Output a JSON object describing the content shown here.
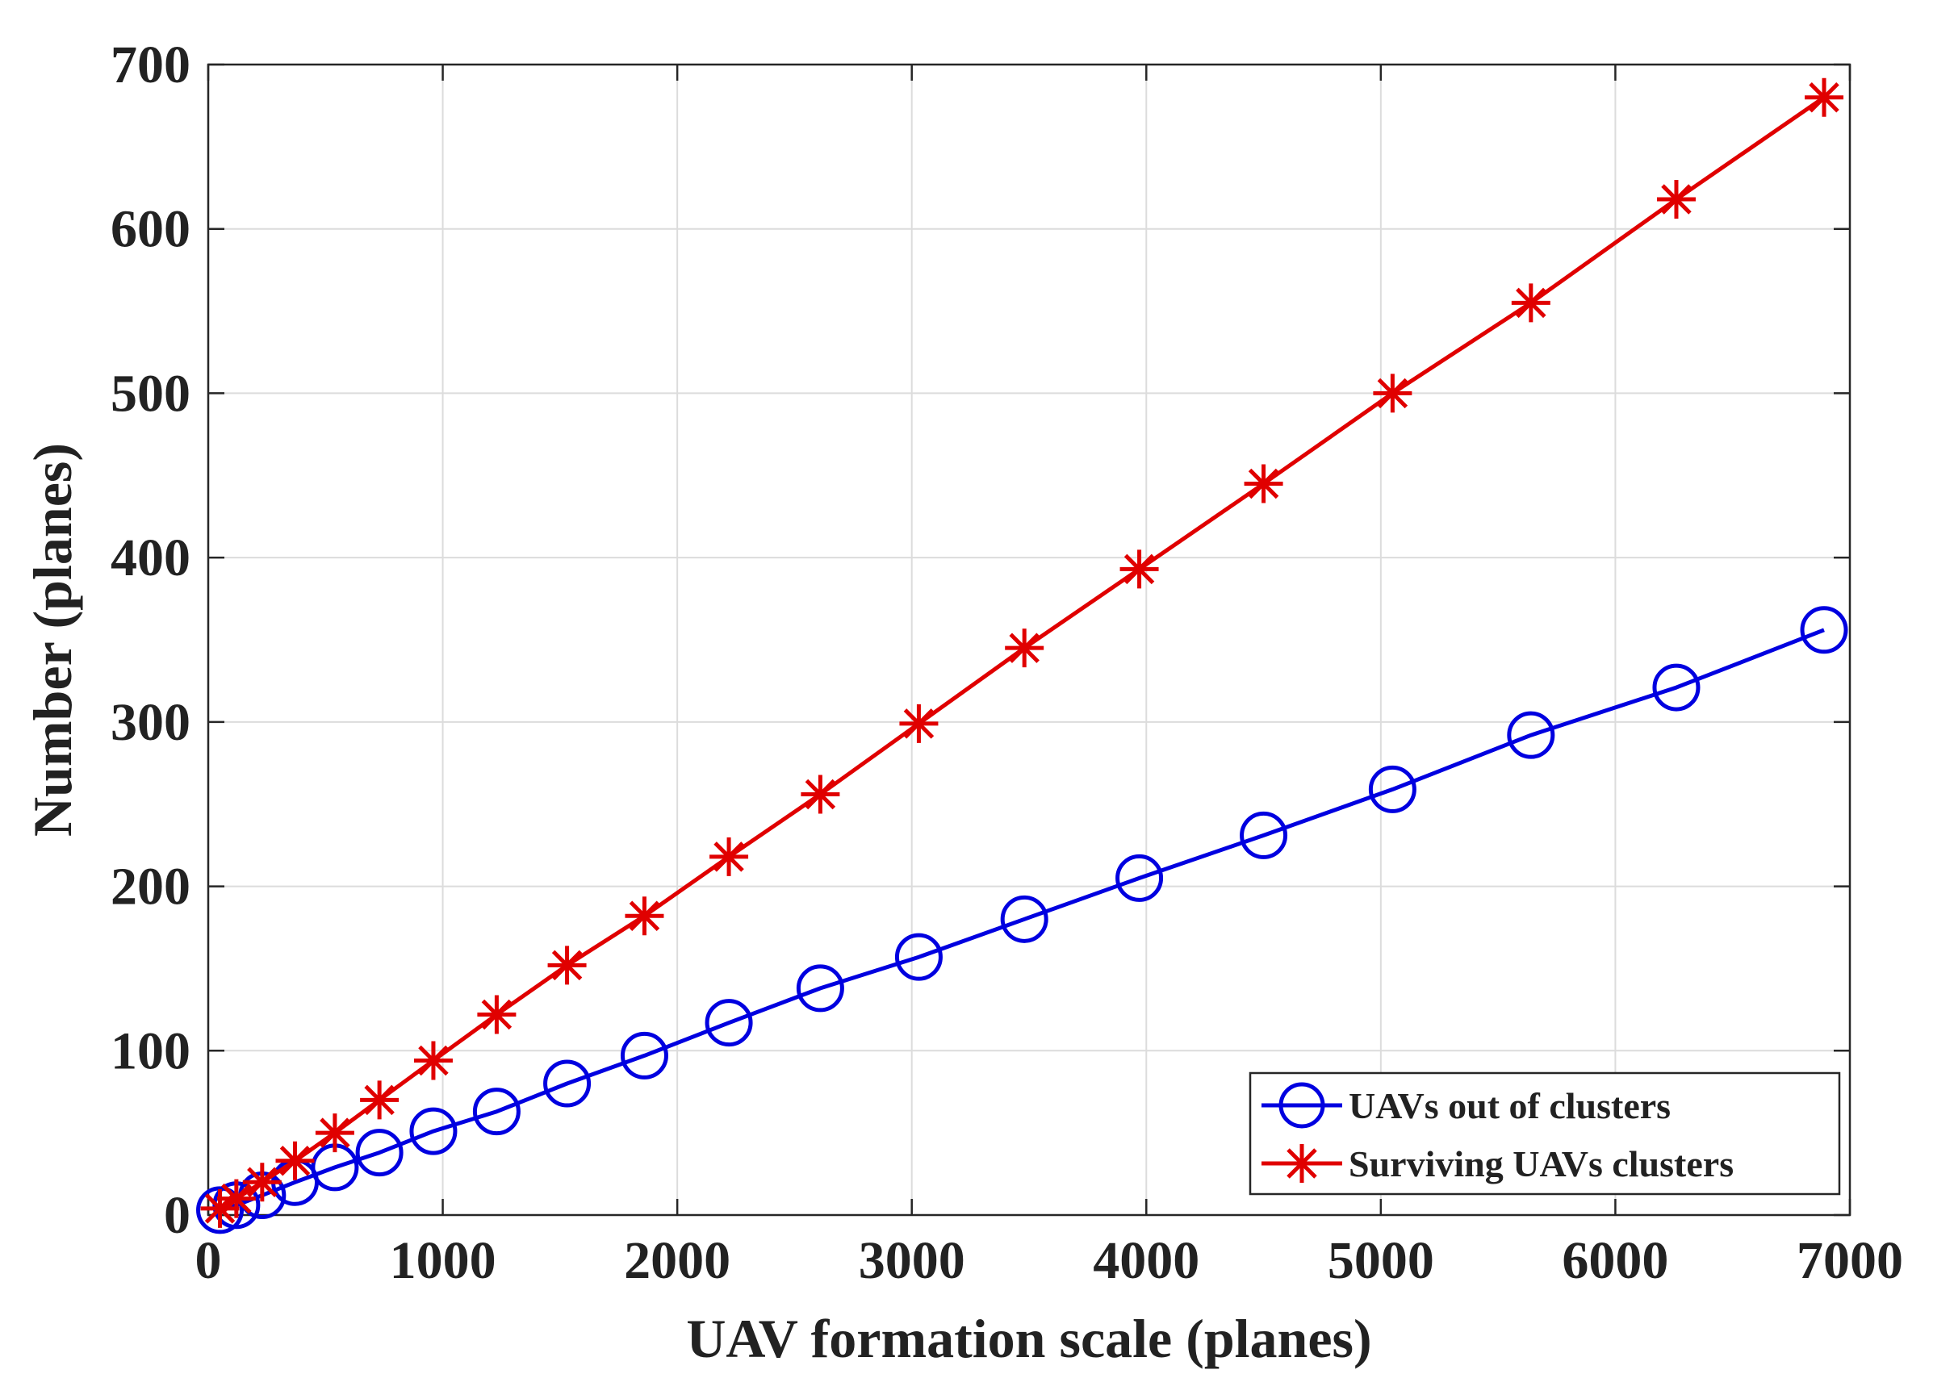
{
  "chart_data": {
    "type": "line",
    "xlabel": "UAV formation scale (planes)",
    "ylabel": "Number (planes)",
    "xlim": [
      0,
      7000
    ],
    "ylim": [
      0,
      700
    ],
    "xticks": [
      0,
      1000,
      2000,
      3000,
      4000,
      5000,
      6000,
      7000
    ],
    "yticks": [
      0,
      100,
      200,
      300,
      400,
      500,
      600,
      700
    ],
    "grid": true,
    "legend_position": "bottom-right",
    "series": [
      {
        "name": "UAVs out of clusters",
        "color": "#0000e0",
        "marker": "circle",
        "x": [
          50,
          120,
          230,
          370,
          540,
          730,
          960,
          1230,
          1530,
          1860,
          2220,
          2610,
          3030,
          3480,
          3970,
          4500,
          5050,
          5640,
          6260,
          6890
        ],
        "y": [
          3,
          6,
          12,
          20,
          29,
          38,
          51,
          63,
          80,
          97,
          117,
          138,
          157,
          180,
          205,
          231,
          259,
          292,
          321,
          356
        ]
      },
      {
        "name": "Surviving UAVs clusters",
        "color": "#e00000",
        "marker": "asterisk",
        "x": [
          50,
          120,
          230,
          370,
          540,
          730,
          960,
          1230,
          1530,
          1860,
          2220,
          2610,
          3030,
          3480,
          3970,
          4500,
          5050,
          5640,
          6260,
          6890
        ],
        "y": [
          4,
          10,
          20,
          33,
          50,
          70,
          94,
          122,
          152,
          182,
          218,
          256,
          299,
          345,
          393,
          445,
          500,
          555,
          618,
          680
        ]
      }
    ]
  }
}
